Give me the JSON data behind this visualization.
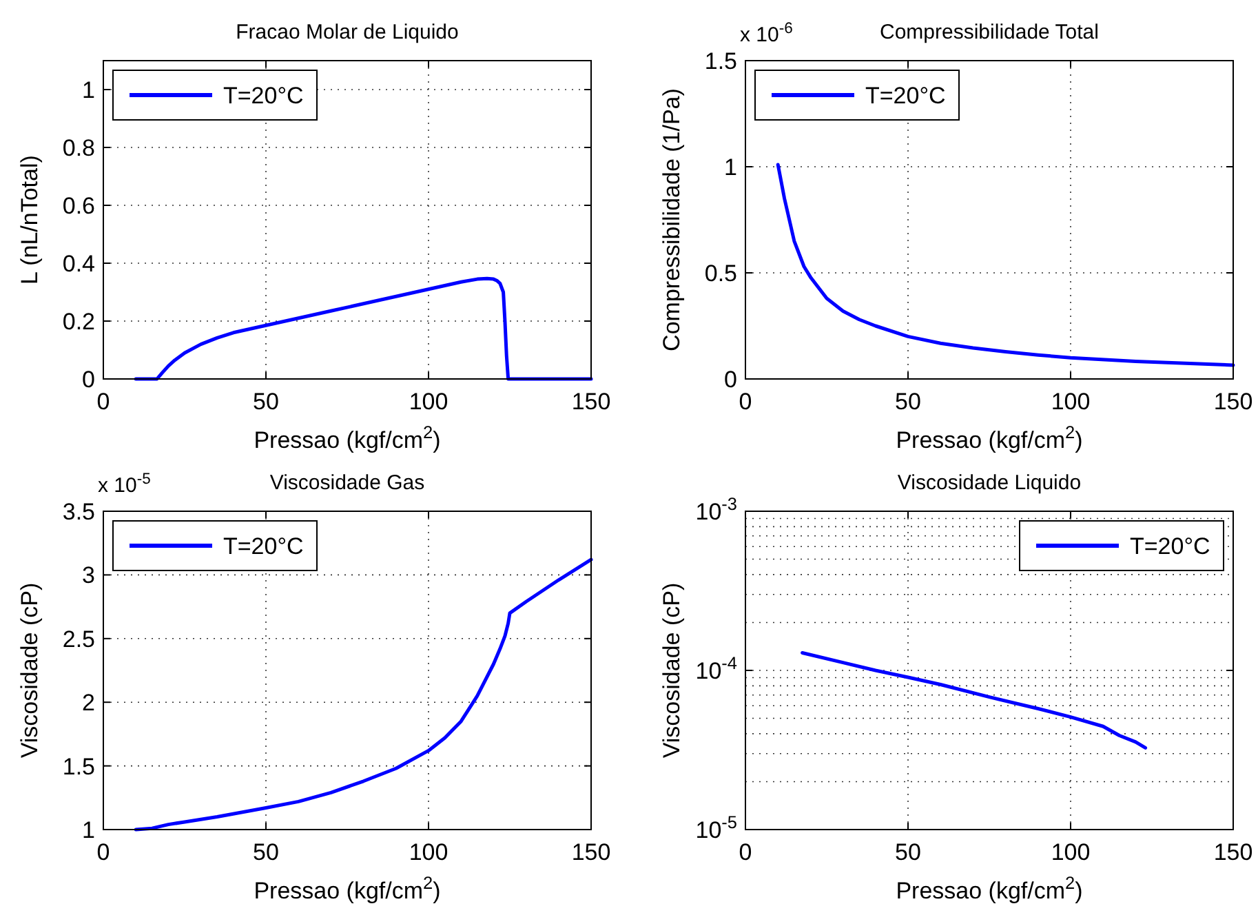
{
  "chart_data": [
    {
      "type": "line",
      "title": "Fracao Molar de Liquido",
      "xlabel": "Pressao (kgf/cm$^{2}$)",
      "ylabel": "L (nL/nTotal)",
      "x": [
        10,
        16.5,
        18,
        20,
        22,
        25,
        30,
        35,
        40,
        50,
        60,
        70,
        80,
        90,
        100,
        110,
        115,
        118,
        120,
        121,
        122,
        123,
        123.5,
        124,
        124.5,
        130,
        140,
        150
      ],
      "series": [
        {
          "name": "T=20°C",
          "color": "#0000ff",
          "values": [
            0,
            0,
            0.02,
            0.045,
            0.065,
            0.09,
            0.12,
            0.142,
            0.16,
            0.185,
            0.21,
            0.235,
            0.26,
            0.285,
            0.31,
            0.335,
            0.345,
            0.347,
            0.345,
            0.34,
            0.33,
            0.3,
            0.2,
            0.08,
            0,
            0,
            0,
            0
          ]
        }
      ],
      "xlim": [
        0,
        150
      ],
      "xticks": [
        0,
        50,
        100,
        150
      ],
      "ylim": [
        0,
        1.1
      ],
      "yticks": [
        0,
        0.2,
        0.4,
        0.6,
        0.8,
        1
      ],
      "grid": true,
      "legend": "top left",
      "line_style": "solid"
    },
    {
      "type": "line",
      "title": "Compressibilidade Total",
      "xlabel": "Pressao (kgf/cm$^{2}$)",
      "ylabel": "Compressibilidade (1/Pa)",
      "annotations": [
        "x 10$^{-6}$"
      ],
      "x": [
        10,
        12,
        15,
        18,
        20,
        25,
        30,
        35,
        40,
        50,
        60,
        70,
        80,
        90,
        100,
        120,
        150
      ],
      "series": [
        {
          "name": "T=20°C",
          "color": "#0000ff",
          "values": [
            1.01,
            0.85,
            0.65,
            0.53,
            0.48,
            0.38,
            0.32,
            0.28,
            0.25,
            0.2,
            0.168,
            0.146,
            0.128,
            0.113,
            0.1,
            0.083,
            0.065
          ]
        }
      ],
      "xlim": [
        0,
        150
      ],
      "xticks": [
        0,
        50,
        100,
        150
      ],
      "ylim": [
        0,
        1.5
      ],
      "yticks": [
        0,
        0.5,
        1,
        1.5
      ],
      "grid": true,
      "legend": "top left",
      "line_style": "solid"
    },
    {
      "type": "line",
      "title": "Viscosidade Gas",
      "xlabel": "Pressao (kgf/cm$^{2}$)",
      "ylabel": "Viscosidade (cP)",
      "annotations": [
        "x 10$^{-5}$"
      ],
      "x": [
        10,
        15,
        20,
        25,
        35,
        50,
        60,
        70,
        80,
        90,
        100,
        105,
        110,
        115,
        120,
        122,
        123.5,
        124.5,
        125,
        130,
        140,
        150
      ],
      "series": [
        {
          "name": "T=20°C",
          "color": "#0000ff",
          "values": [
            1,
            1.01,
            1.04,
            1.06,
            1.1,
            1.17,
            1.22,
            1.29,
            1.38,
            1.48,
            1.62,
            1.72,
            1.85,
            2.05,
            2.3,
            2.42,
            2.52,
            2.62,
            2.7,
            2.79,
            2.96,
            3.12
          ]
        }
      ],
      "xlim": [
        0,
        150
      ],
      "xticks": [
        0,
        50,
        100,
        150
      ],
      "ylim": [
        1,
        3.5
      ],
      "yticks": [
        1,
        1.5,
        2,
        2.5,
        3,
        3.5
      ],
      "grid": true,
      "legend": "top left",
      "line_style": "solid"
    },
    {
      "type": "line",
      "title": "Viscosidade Liquido",
      "xlabel": "Pressao (kgf/cm$^{2}$)",
      "ylabel": "Viscosidade (cP)",
      "x": [
        17.5,
        30,
        40,
        50,
        60,
        75,
        90,
        100,
        110,
        115,
        120,
        123
      ],
      "series": [
        {
          "name": "T=20°C",
          "color": "#0000ff",
          "values": [
            0.000129,
            0.000112,
            0.0001,
            9.05e-05,
            8.15e-05,
            6.8e-05,
            5.75e-05,
            5.1e-05,
            4.45e-05,
            3.9e-05,
            3.55e-05,
            3.26e-05
          ]
        }
      ],
      "xlim": [
        0,
        150
      ],
      "xticks": [
        0,
        50,
        100,
        150
      ],
      "ylim": [
        1e-05,
        0.001
      ],
      "yticks": [
        {
          "value": 1e-05,
          "label": "10$^{-5}$"
        },
        {
          "value": 0.0001,
          "label": "10$^{-4}$"
        },
        {
          "value": 0.001,
          "label": "10$^{-3}$"
        }
      ],
      "log": true,
      "grid": true,
      "legend": "top right",
      "line_style": "solid"
    }
  ]
}
